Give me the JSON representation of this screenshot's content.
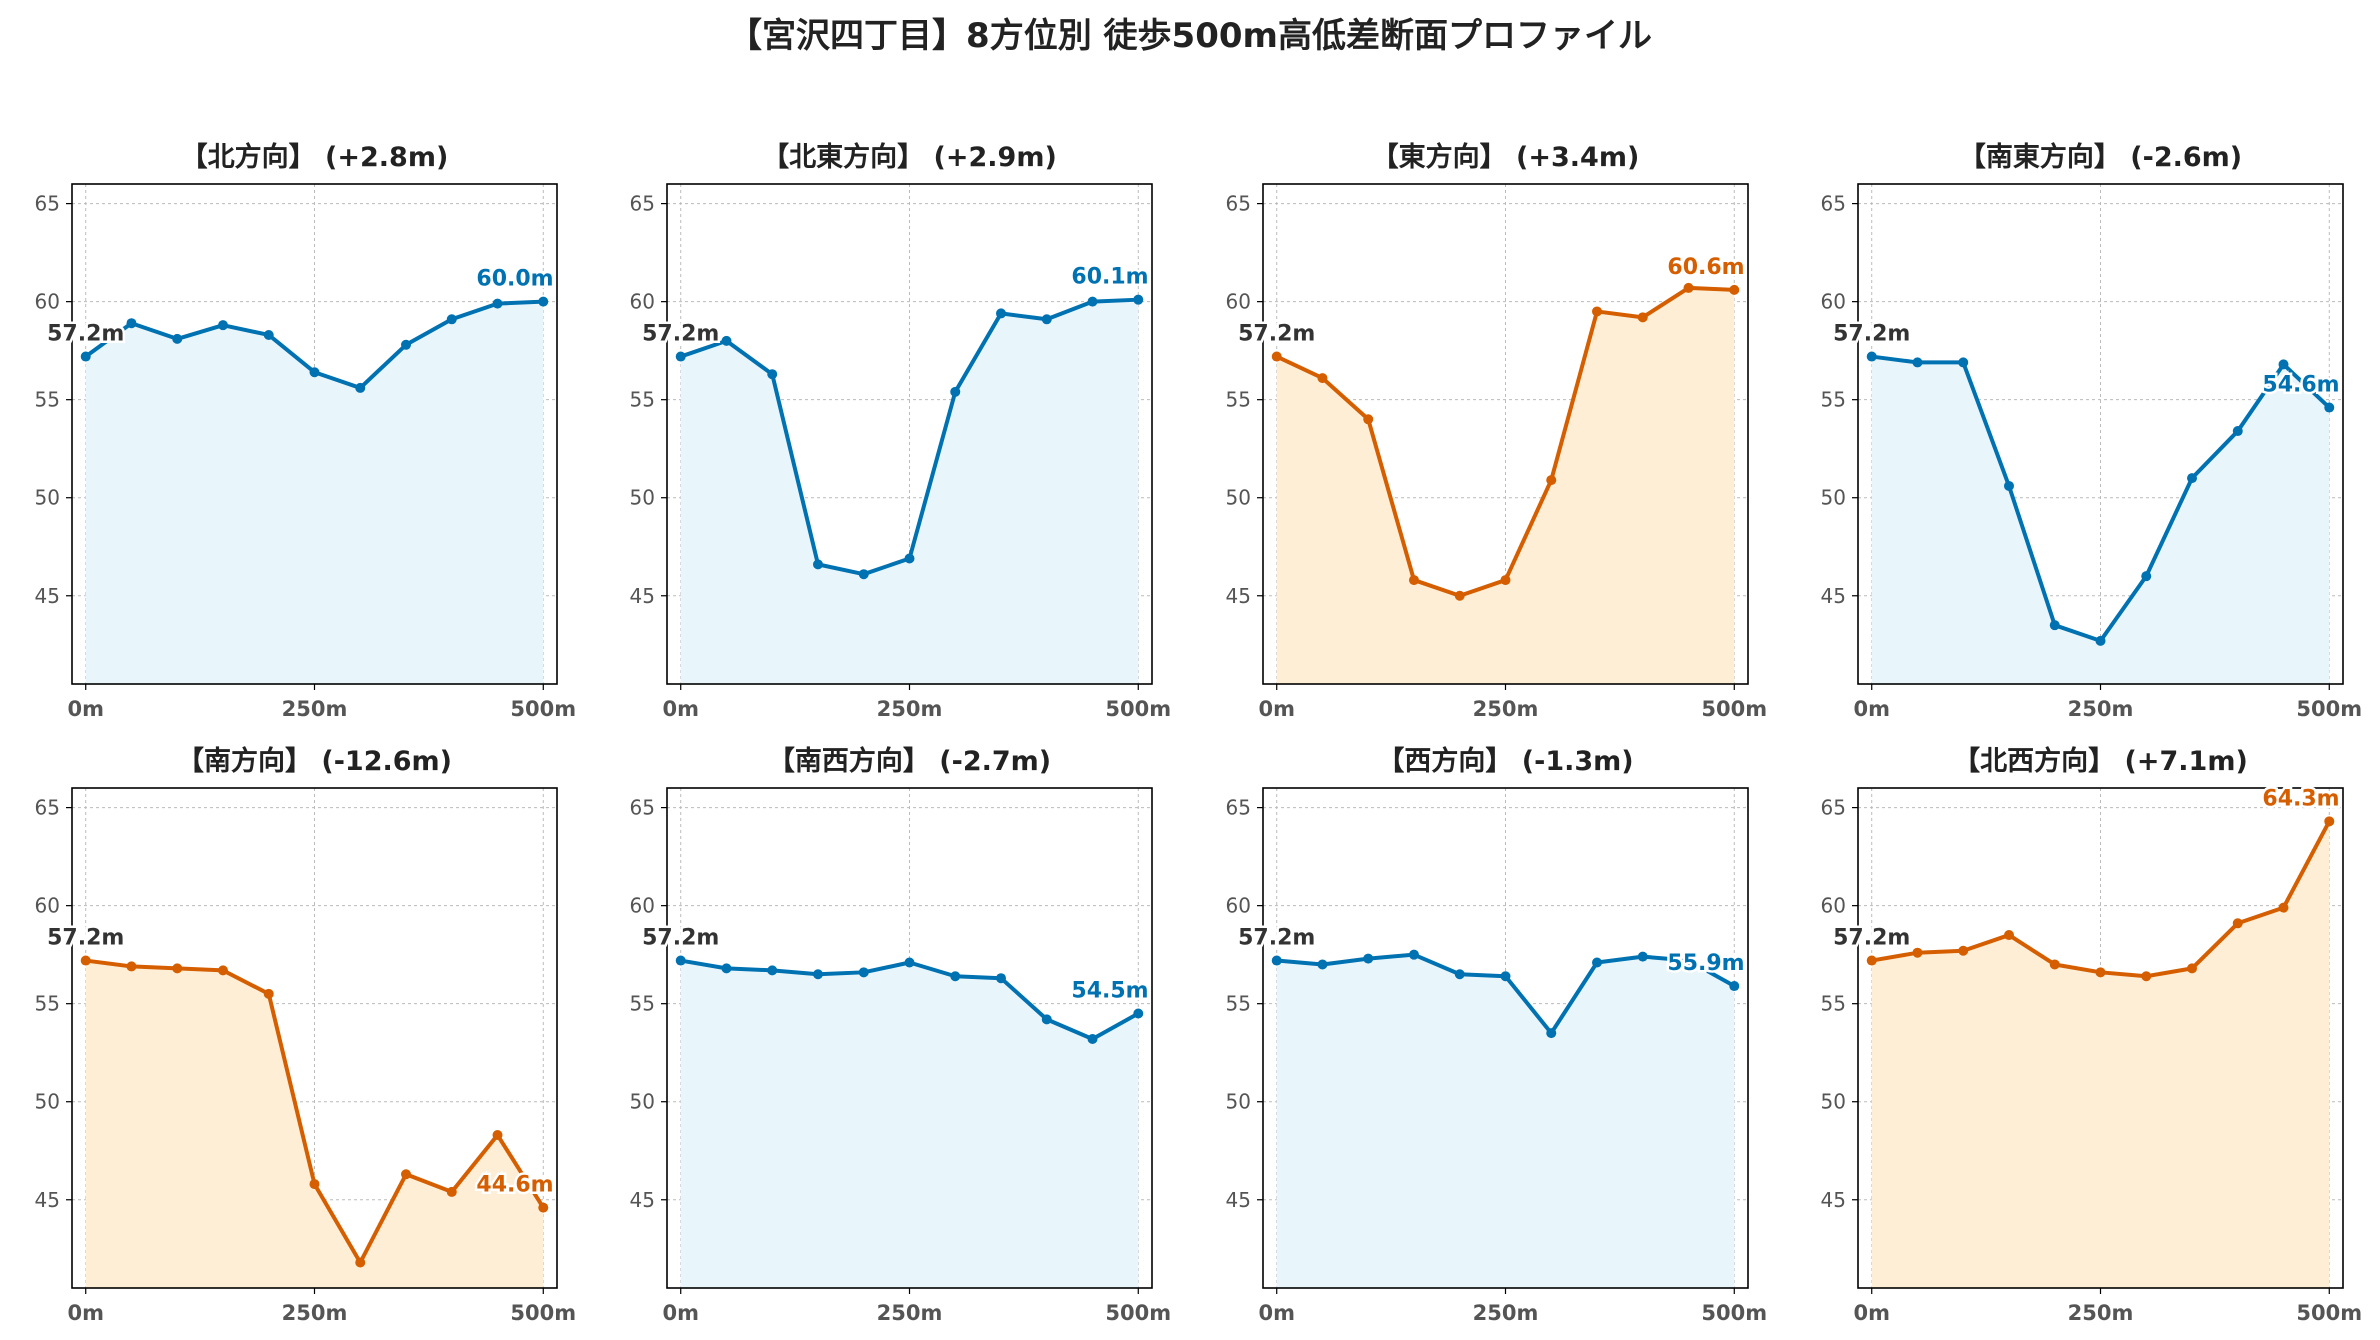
{
  "suptitle": "【宮沢四丁目】8方位別 徒歩500m高低差断面プロファイル",
  "colors": {
    "up_line": "#0072B2",
    "up_fill": "#e8f6fc",
    "down_line": "#D55E00",
    "down_fill": "#ffeed6",
    "start_label": "#333333",
    "axes": "#000000",
    "grid": "#bbbbbb",
    "tick": "#555555"
  },
  "chart_data": [
    {
      "type": "area",
      "title": "【北方向】 (+2.8m)",
      "x": [
        0,
        50,
        100,
        150,
        200,
        250,
        300,
        350,
        400,
        450,
        500
      ],
      "y": [
        57.2,
        58.9,
        58.1,
        58.8,
        58.3,
        56.4,
        55.6,
        57.8,
        59.1,
        59.9,
        60.0
      ],
      "start_label": "57.2m",
      "end_label": "60.0m",
      "style": "up",
      "xticks": [
        0,
        250,
        500
      ],
      "xtick_labels": [
        "0m",
        "250m",
        "500m"
      ],
      "yticks": [
        45,
        50,
        55,
        60,
        65
      ],
      "xlim": [
        -15,
        515
      ],
      "ylim": [
        40.5,
        66
      ],
      "grid": true
    },
    {
      "type": "area",
      "title": "【北東方向】 (+2.9m)",
      "x": [
        0,
        50,
        100,
        150,
        200,
        250,
        300,
        350,
        400,
        450,
        500
      ],
      "y": [
        57.2,
        58.0,
        56.3,
        46.6,
        46.1,
        46.9,
        55.4,
        59.4,
        59.1,
        60.0,
        60.1
      ],
      "start_label": "57.2m",
      "end_label": "60.1m",
      "style": "up",
      "xticks": [
        0,
        250,
        500
      ],
      "xtick_labels": [
        "0m",
        "250m",
        "500m"
      ],
      "yticks": [
        45,
        50,
        55,
        60,
        65
      ],
      "xlim": [
        -15,
        515
      ],
      "ylim": [
        40.5,
        66
      ],
      "grid": true
    },
    {
      "type": "area",
      "title": "【東方向】 (+3.4m)",
      "x": [
        0,
        50,
        100,
        150,
        200,
        250,
        300,
        350,
        400,
        450,
        500
      ],
      "y": [
        57.2,
        56.1,
        54.0,
        45.8,
        45.0,
        45.8,
        50.9,
        59.5,
        59.2,
        60.7,
        60.6
      ],
      "start_label": "57.2m",
      "end_label": "60.6m",
      "style": "down",
      "xticks": [
        0,
        250,
        500
      ],
      "xtick_labels": [
        "0m",
        "250m",
        "500m"
      ],
      "yticks": [
        45,
        50,
        55,
        60,
        65
      ],
      "xlim": [
        -15,
        515
      ],
      "ylim": [
        40.5,
        66
      ],
      "grid": true
    },
    {
      "type": "area",
      "title": "【南東方向】 (-2.6m)",
      "x": [
        0,
        50,
        100,
        150,
        200,
        250,
        300,
        350,
        400,
        450,
        500
      ],
      "y": [
        57.2,
        56.9,
        56.9,
        50.6,
        43.5,
        42.7,
        46.0,
        51.0,
        53.4,
        56.8,
        54.6
      ],
      "start_label": "57.2m",
      "end_label": "54.6m",
      "style": "up",
      "xticks": [
        0,
        250,
        500
      ],
      "xtick_labels": [
        "0m",
        "250m",
        "500m"
      ],
      "yticks": [
        45,
        50,
        55,
        60,
        65
      ],
      "xlim": [
        -15,
        515
      ],
      "ylim": [
        40.5,
        66
      ],
      "grid": true
    },
    {
      "type": "area",
      "title": "【南方向】 (-12.6m)",
      "x": [
        0,
        50,
        100,
        150,
        200,
        250,
        300,
        350,
        400,
        450,
        500
      ],
      "y": [
        57.2,
        56.9,
        56.8,
        56.7,
        55.5,
        45.8,
        41.8,
        46.3,
        45.4,
        48.3,
        44.6
      ],
      "start_label": "57.2m",
      "end_label": "44.6m",
      "style": "down",
      "xticks": [
        0,
        250,
        500
      ],
      "xtick_labels": [
        "0m",
        "250m",
        "500m"
      ],
      "yticks": [
        45,
        50,
        55,
        60,
        65
      ],
      "xlim": [
        -15,
        515
      ],
      "ylim": [
        40.5,
        66
      ],
      "grid": true
    },
    {
      "type": "area",
      "title": "【南西方向】 (-2.7m)",
      "x": [
        0,
        50,
        100,
        150,
        200,
        250,
        300,
        350,
        400,
        450,
        500
      ],
      "y": [
        57.2,
        56.8,
        56.7,
        56.5,
        56.6,
        57.1,
        56.4,
        56.3,
        54.2,
        53.2,
        54.5
      ],
      "start_label": "57.2m",
      "end_label": "54.5m",
      "style": "up",
      "xticks": [
        0,
        250,
        500
      ],
      "xtick_labels": [
        "0m",
        "250m",
        "500m"
      ],
      "yticks": [
        45,
        50,
        55,
        60,
        65
      ],
      "xlim": [
        -15,
        515
      ],
      "ylim": [
        40.5,
        66
      ],
      "grid": true
    },
    {
      "type": "area",
      "title": "【西方向】 (-1.3m)",
      "x": [
        0,
        50,
        100,
        150,
        200,
        250,
        300,
        350,
        400,
        450,
        500
      ],
      "y": [
        57.2,
        57.0,
        57.3,
        57.5,
        56.5,
        56.4,
        53.5,
        57.1,
        57.4,
        57.2,
        55.9
      ],
      "start_label": "57.2m",
      "end_label": "55.9m",
      "style": "up",
      "xticks": [
        0,
        250,
        500
      ],
      "xtick_labels": [
        "0m",
        "250m",
        "500m"
      ],
      "yticks": [
        45,
        50,
        55,
        60,
        65
      ],
      "xlim": [
        -15,
        515
      ],
      "ylim": [
        40.5,
        66
      ],
      "grid": true
    },
    {
      "type": "area",
      "title": "【北西方向】 (+7.1m)",
      "x": [
        0,
        50,
        100,
        150,
        200,
        250,
        300,
        350,
        400,
        450,
        500
      ],
      "y": [
        57.2,
        57.6,
        57.7,
        58.5,
        57.0,
        56.6,
        56.4,
        56.8,
        59.1,
        59.9,
        64.3
      ],
      "start_label": "57.2m",
      "end_label": "64.3m",
      "style": "down",
      "xticks": [
        0,
        250,
        500
      ],
      "xtick_labels": [
        "0m",
        "250m",
        "500m"
      ],
      "yticks": [
        45,
        50,
        55,
        60,
        65
      ],
      "xlim": [
        -15,
        515
      ],
      "ylim": [
        40.5,
        66
      ],
      "grid": true
    }
  ]
}
